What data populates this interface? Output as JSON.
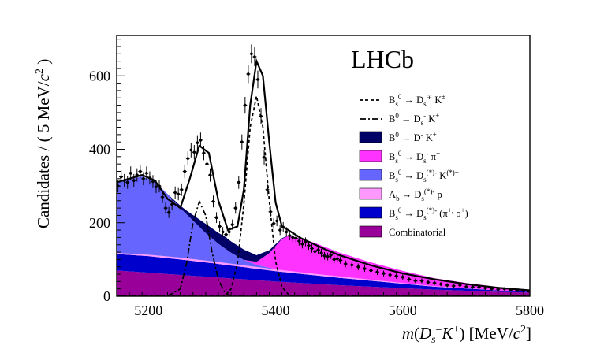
{
  "chart_data": {
    "type": "area",
    "title": "",
    "experiment_label": "LHCb",
    "xlabel": "m(D_s^- K^+) [MeV/c^2]",
    "ylabel": "Candidates / ( 5 MeV/c^2 )",
    "xlim": [
      5150,
      5800
    ],
    "ylim": [
      0,
      710
    ],
    "x_ticks": [
      5200,
      5400,
      5600,
      5800
    ],
    "y_ticks": [
      0,
      200,
      400,
      600
    ],
    "x_tick_labels": [
      "5200",
      "5400",
      "5600",
      "5800"
    ],
    "y_tick_labels": [
      "0",
      "200",
      "400",
      "600"
    ],
    "legend_position": "right",
    "components": [
      {
        "name": "Combinatorial",
        "color": "#990099",
        "points": [
          [
            5150,
            70
          ],
          [
            5200,
            64
          ],
          [
            5250,
            58
          ],
          [
            5300,
            52
          ],
          [
            5350,
            46
          ],
          [
            5400,
            40
          ],
          [
            5450,
            35
          ],
          [
            5500,
            30
          ],
          [
            5550,
            26
          ],
          [
            5600,
            22
          ],
          [
            5650,
            18
          ],
          [
            5700,
            15
          ],
          [
            5750,
            12
          ],
          [
            5800,
            10
          ]
        ]
      },
      {
        "name": "B_s0 -> D_s(*)- (pi+, rho+)",
        "color": "#0000cc",
        "points": [
          [
            5150,
            45
          ],
          [
            5200,
            45
          ],
          [
            5250,
            42
          ],
          [
            5300,
            38
          ],
          [
            5350,
            33
          ],
          [
            5400,
            28
          ],
          [
            5450,
            24
          ],
          [
            5500,
            20
          ],
          [
            5550,
            16
          ],
          [
            5600,
            12
          ],
          [
            5650,
            8
          ],
          [
            5700,
            6
          ],
          [
            5750,
            4
          ],
          [
            5800,
            2
          ]
        ]
      },
      {
        "name": "Lambda_b -> D_s(*)- p",
        "color": "#ff99ff",
        "points": [
          [
            5150,
            3
          ],
          [
            5200,
            4
          ],
          [
            5250,
            5
          ],
          [
            5300,
            5
          ],
          [
            5350,
            5
          ],
          [
            5400,
            5
          ],
          [
            5450,
            4
          ],
          [
            5500,
            4
          ],
          [
            5550,
            3
          ],
          [
            5600,
            2
          ],
          [
            5650,
            1
          ],
          [
            5700,
            1
          ],
          [
            5750,
            0
          ],
          [
            5800,
            0
          ]
        ]
      },
      {
        "name": "B_s0 -> D_s(*)- K(*)+",
        "color": "#6666ff",
        "points": [
          [
            5150,
            190
          ],
          [
            5170,
            202
          ],
          [
            5190,
            212
          ],
          [
            5210,
            200
          ],
          [
            5230,
            170
          ],
          [
            5250,
            135
          ],
          [
            5270,
            105
          ],
          [
            5290,
            75
          ],
          [
            5310,
            50
          ],
          [
            5330,
            30
          ],
          [
            5350,
            15
          ],
          [
            5370,
            6
          ],
          [
            5390,
            2
          ],
          [
            5410,
            0
          ],
          [
            5800,
            0
          ]
        ]
      },
      {
        "name": "B_s0 -> D_s- pi+",
        "color": "#ff33ff",
        "points": [
          [
            5150,
            0
          ],
          [
            5350,
            0
          ],
          [
            5370,
            8
          ],
          [
            5390,
            40
          ],
          [
            5410,
            85
          ],
          [
            5420,
            96
          ],
          [
            5440,
            92
          ],
          [
            5460,
            85
          ],
          [
            5480,
            75
          ],
          [
            5500,
            65
          ],
          [
            5550,
            47
          ],
          [
            5600,
            33
          ],
          [
            5650,
            22
          ],
          [
            5700,
            14
          ],
          [
            5750,
            9
          ],
          [
            5800,
            5
          ]
        ]
      },
      {
        "name": "B0 -> D- K+",
        "color": "#000066",
        "points": [
          [
            5150,
            0
          ],
          [
            5230,
            0
          ],
          [
            5260,
            10
          ],
          [
            5290,
            25
          ],
          [
            5320,
            32
          ],
          [
            5350,
            28
          ],
          [
            5370,
            18
          ],
          [
            5390,
            8
          ],
          [
            5410,
            2
          ],
          [
            5430,
            0
          ],
          [
            5800,
            0
          ]
        ]
      }
    ],
    "curves": [
      {
        "name": "B_s0 -> D_s-+ K+-",
        "style": "dashed",
        "points": [
          [
            5150,
            0
          ],
          [
            5320,
            0
          ],
          [
            5330,
            20
          ],
          [
            5340,
            90
          ],
          [
            5350,
            250
          ],
          [
            5360,
            460
          ],
          [
            5370,
            545
          ],
          [
            5380,
            460
          ],
          [
            5390,
            260
          ],
          [
            5400,
            95
          ],
          [
            5410,
            25
          ],
          [
            5420,
            5
          ],
          [
            5430,
            0
          ],
          [
            5800,
            0
          ]
        ]
      },
      {
        "name": "B0 -> D_s- K+",
        "style": "dashdot",
        "points": [
          [
            5150,
            0
          ],
          [
            5230,
            0
          ],
          [
            5250,
            20
          ],
          [
            5260,
            90
          ],
          [
            5270,
            200
          ],
          [
            5280,
            258
          ],
          [
            5290,
            220
          ],
          [
            5300,
            120
          ],
          [
            5310,
            45
          ],
          [
            5320,
            10
          ],
          [
            5330,
            0
          ],
          [
            5800,
            0
          ]
        ]
      },
      {
        "name": "total fit",
        "style": "solid",
        "points": [
          [
            5150,
            310
          ],
          [
            5170,
            320
          ],
          [
            5190,
            330
          ],
          [
            5210,
            315
          ],
          [
            5230,
            265
          ],
          [
            5250,
            240
          ],
          [
            5265,
            320
          ],
          [
            5280,
            410
          ],
          [
            5295,
            390
          ],
          [
            5310,
            260
          ],
          [
            5325,
            180
          ],
          [
            5340,
            190
          ],
          [
            5350,
            290
          ],
          [
            5360,
            520
          ],
          [
            5370,
            640
          ],
          [
            5380,
            600
          ],
          [
            5390,
            420
          ],
          [
            5400,
            255
          ],
          [
            5410,
            190
          ],
          [
            5420,
            180
          ],
          [
            5440,
            158
          ],
          [
            5460,
            142
          ],
          [
            5480,
            126
          ],
          [
            5500,
            112
          ],
          [
            5550,
            84
          ],
          [
            5600,
            62
          ],
          [
            5650,
            46
          ],
          [
            5700,
            33
          ],
          [
            5750,
            23
          ],
          [
            5800,
            16
          ]
        ]
      }
    ],
    "data_points": {
      "name": "data",
      "style": "points with error bars",
      "x": [
        5152,
        5157,
        5162,
        5167,
        5172,
        5177,
        5182,
        5187,
        5192,
        5197,
        5202,
        5207,
        5212,
        5217,
        5222,
        5227,
        5232,
        5237,
        5242,
        5247,
        5252,
        5257,
        5262,
        5267,
        5272,
        5277,
        5282,
        5287,
        5292,
        5297,
        5302,
        5307,
        5312,
        5317,
        5322,
        5327,
        5332,
        5337,
        5342,
        5347,
        5352,
        5357,
        5362,
        5367,
        5372,
        5377,
        5382,
        5387,
        5392,
        5397,
        5402,
        5407,
        5412,
        5417,
        5422,
        5427,
        5432,
        5437,
        5442,
        5447,
        5452,
        5457,
        5462,
        5467,
        5472,
        5477,
        5482,
        5487,
        5492,
        5497,
        5502,
        5510,
        5520,
        5530,
        5540,
        5550,
        5560,
        5570,
        5580,
        5590,
        5600,
        5610,
        5620,
        5630,
        5640,
        5650,
        5660,
        5670,
        5680,
        5690,
        5700,
        5710,
        5720,
        5730,
        5740,
        5750,
        5760,
        5770,
        5780,
        5790,
        5798
      ],
      "y": [
        300,
        325,
        315,
        310,
        335,
        315,
        330,
        340,
        320,
        335,
        322,
        312,
        298,
        300,
        270,
        240,
        228,
        250,
        282,
        278,
        290,
        340,
        375,
        398,
        392,
        418,
        425,
        390,
        360,
        330,
        258,
        214,
        190,
        175,
        168,
        175,
        195,
        240,
        310,
        420,
        520,
        605,
        660,
        652,
        590,
        490,
        378,
        290,
        230,
        198,
        205,
        180,
        188,
        175,
        165,
        160,
        158,
        150,
        142,
        148,
        138,
        130,
        122,
        126,
        118,
        110,
        108,
        112,
        100,
        102,
        98,
        88,
        85,
        80,
        75,
        70,
        66,
        62,
        58,
        55,
        52,
        46,
        42,
        42,
        38,
        36,
        33,
        30,
        28,
        30,
        26,
        25,
        24,
        22,
        20,
        19,
        20,
        17,
        16,
        15,
        14
      ]
    },
    "legend": [
      {
        "label": "B_s^0 → D_s^∓ K^±",
        "marker": "dashed-line"
      },
      {
        "label": "B^0 → D_s^- K^+",
        "marker": "dashdot-line"
      },
      {
        "label": "B^0 → D^- K^+",
        "marker": "box",
        "color": "#000066"
      },
      {
        "label": "B_s^0 → D_s^- π^+",
        "marker": "box",
        "color": "#ff33ff"
      },
      {
        "label": "B_s^0 → D_s^(*)- K^(*)+",
        "marker": "box",
        "color": "#6666ff"
      },
      {
        "label": "Λ_b → D_s^(*)- p",
        "marker": "box",
        "color": "#ff99ff"
      },
      {
        "label": "B_s^0 → D_s^(*)- (π^+, ρ^+)",
        "marker": "box",
        "color": "#0000cc"
      },
      {
        "label": "Combinatorial",
        "marker": "box",
        "color": "#990099"
      }
    ]
  }
}
